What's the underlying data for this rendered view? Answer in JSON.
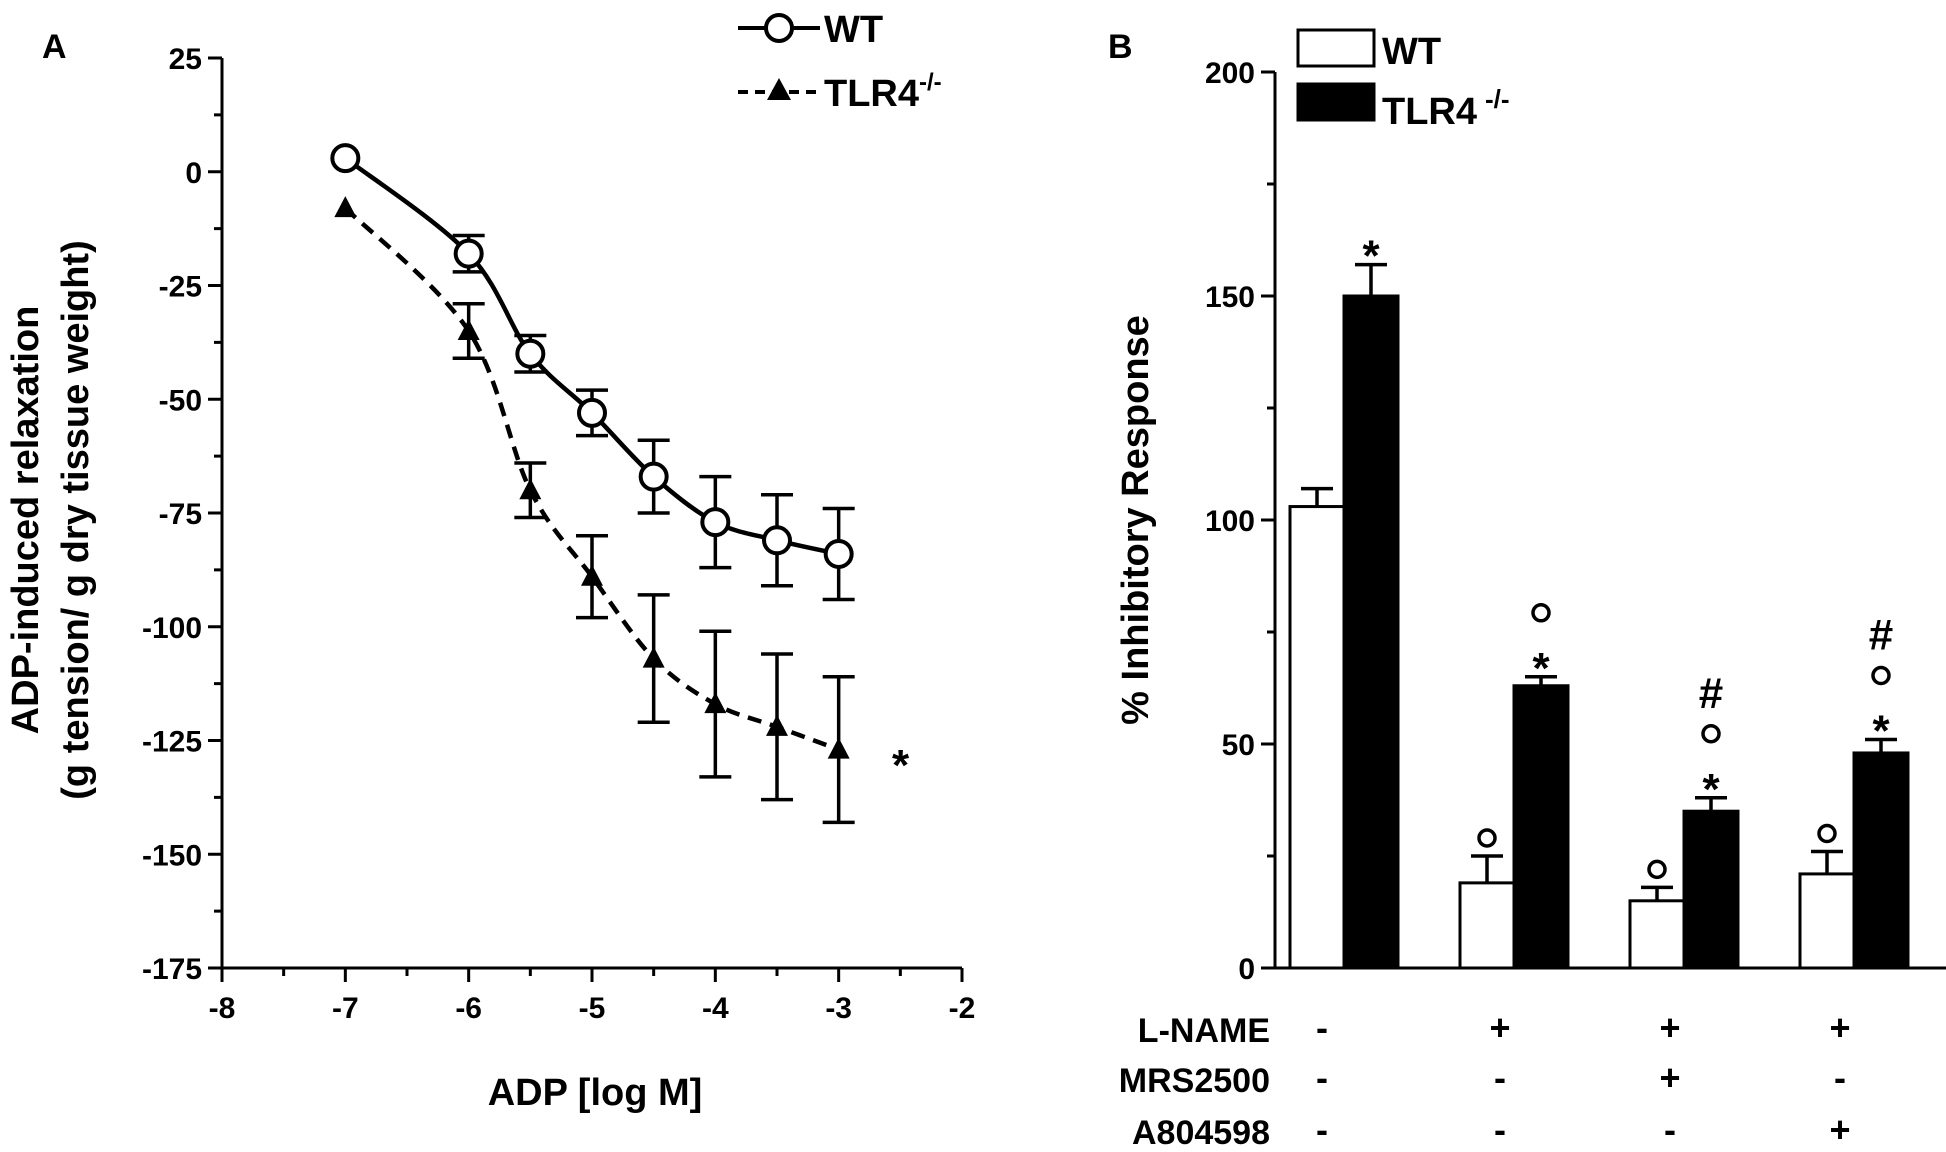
{
  "chart_data": [
    {
      "type": "line",
      "panel_label": "A",
      "xlabel": "ADP [log M]",
      "ylabel_line1": "ADP-induced relaxation",
      "ylabel_line2": "(g tension/ g dry tissue weight)",
      "xlim": [
        -8,
        -2
      ],
      "ylim": [
        -175,
        25
      ],
      "x_ticks": [
        -8,
        -7,
        -6,
        -5,
        -4,
        -3,
        -2
      ],
      "y_ticks": [
        25,
        0,
        -25,
        -50,
        -75,
        -100,
        -125,
        -150,
        -175
      ],
      "x": [
        -7,
        -6,
        -5.5,
        -5,
        -4.5,
        -4,
        -3.5,
        -3
      ],
      "series": [
        {
          "name": "WT",
          "marker": "open-circle",
          "line": "solid",
          "values": [
            3,
            -18,
            -40,
            -53,
            -67,
            -77,
            -81,
            -84
          ],
          "errors": [
            0,
            4,
            4,
            5,
            8,
            10,
            10,
            10
          ]
        },
        {
          "name": "TLR4",
          "name_sup": "-/-",
          "marker": "filled-triangle",
          "line": "dashed",
          "values": [
            -8,
            -35,
            -70,
            -89,
            -107,
            -117,
            -122,
            -127
          ],
          "errors": [
            0,
            6,
            6,
            9,
            14,
            16,
            16,
            16
          ]
        }
      ],
      "annotation": "*"
    },
    {
      "type": "bar",
      "panel_label": "B",
      "ylabel": "% Inhibitory Response",
      "ylim": [
        0,
        200
      ],
      "y_ticks": [
        0,
        50,
        100,
        150,
        200
      ],
      "groups": 4,
      "series": [
        {
          "name": "WT",
          "fill": "#ffffff",
          "values": [
            103,
            19,
            15,
            21
          ],
          "errors": [
            4,
            6,
            3,
            5
          ],
          "marks": [
            "",
            "°",
            "°",
            "°"
          ]
        },
        {
          "name": "TLR4",
          "name_sup": "-/-",
          "fill": "#000000",
          "values": [
            150,
            63,
            35,
            48
          ],
          "errors": [
            7,
            2,
            3,
            3
          ],
          "marks": [
            "*",
            "°*",
            "#°*",
            "#°*"
          ]
        }
      ],
      "conditions": [
        {
          "label": "L-NAME",
          "values": [
            "-",
            "+",
            "+",
            "+"
          ]
        },
        {
          "label": "MRS2500",
          "values": [
            "-",
            "-",
            "+",
            "-"
          ]
        },
        {
          "label": "A804598",
          "values": [
            "-",
            "-",
            "-",
            "+"
          ]
        }
      ]
    }
  ]
}
